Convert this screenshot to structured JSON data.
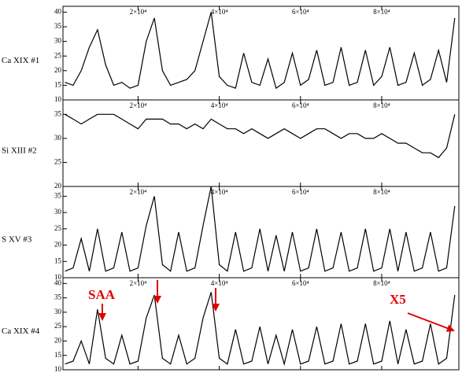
{
  "chart_data": [
    {
      "type": "line",
      "label": "Ca XIX #1",
      "color": "#000000",
      "x": [
        2000,
        4000,
        6000,
        8000,
        10000,
        12000,
        14000,
        16000,
        18000,
        20000,
        22000,
        24000,
        26000,
        28000,
        30000,
        32000,
        34000,
        36000,
        38000,
        40000,
        42000,
        44000,
        46000,
        48000,
        50000,
        52000,
        54000,
        56000,
        58000,
        60000,
        62000,
        64000,
        66000,
        68000,
        70000,
        72000,
        74000,
        76000,
        78000,
        80000,
        82000,
        84000,
        86000,
        88000,
        90000,
        92000,
        94000,
        96000,
        98000
      ],
      "values": [
        16,
        15,
        20,
        28,
        34,
        22,
        15,
        16,
        14,
        15,
        30,
        38,
        20,
        15,
        16,
        17,
        20,
        30,
        40,
        18,
        15,
        14,
        26,
        16,
        15,
        24,
        14,
        16,
        26,
        15,
        17,
        27,
        15,
        16,
        28,
        15,
        16,
        27,
        15,
        18,
        28,
        15,
        16,
        26,
        15,
        17,
        27,
        16,
        38
      ],
      "xlim": [
        1500,
        99000
      ],
      "ylim": [
        10,
        42
      ],
      "yticks": [
        10,
        15,
        20,
        25,
        30,
        35,
        40
      ],
      "xticks": [
        {
          "value": 20000,
          "label": "2×10⁴"
        },
        {
          "value": 40000,
          "label": "4×10⁴"
        },
        {
          "value": 60000,
          "label": "6×10⁴"
        },
        {
          "value": 80000,
          "label": "8×10⁴"
        }
      ]
    },
    {
      "type": "line",
      "label": "Si XIII #2",
      "color": "#000000",
      "x": [
        2000,
        4000,
        6000,
        8000,
        10000,
        12000,
        14000,
        16000,
        18000,
        20000,
        22000,
        24000,
        26000,
        28000,
        30000,
        32000,
        34000,
        36000,
        38000,
        40000,
        42000,
        44000,
        46000,
        48000,
        50000,
        52000,
        54000,
        56000,
        58000,
        60000,
        62000,
        64000,
        66000,
        68000,
        70000,
        72000,
        74000,
        76000,
        78000,
        80000,
        82000,
        84000,
        86000,
        88000,
        90000,
        92000,
        94000,
        96000,
        98000
      ],
      "values": [
        35,
        34,
        33,
        34,
        35,
        35,
        35,
        34,
        33,
        32,
        34,
        34,
        34,
        33,
        33,
        32,
        33,
        32,
        34,
        33,
        32,
        32,
        31,
        32,
        31,
        30,
        31,
        32,
        31,
        30,
        31,
        32,
        32,
        31,
        30,
        31,
        31,
        30,
        30,
        31,
        30,
        29,
        29,
        28,
        27,
        27,
        26,
        28,
        35
      ],
      "xlim": [
        1500,
        99000
      ],
      "ylim": [
        20,
        38
      ],
      "yticks": [
        20,
        25,
        30,
        35
      ],
      "xticks": [
        {
          "value": 20000,
          "label": "2×10⁴"
        },
        {
          "value": 40000,
          "label": "4×10⁴"
        },
        {
          "value": 60000,
          "label": "6×10⁴"
        },
        {
          "value": 80000,
          "label": "8×10⁴"
        }
      ]
    },
    {
      "type": "line",
      "label": "S XV #3",
      "color": "#000000",
      "x": [
        2000,
        4000,
        6000,
        8000,
        10000,
        12000,
        14000,
        16000,
        18000,
        20000,
        22000,
        24000,
        26000,
        28000,
        30000,
        32000,
        34000,
        36000,
        38000,
        40000,
        42000,
        44000,
        46000,
        48000,
        50000,
        52000,
        54000,
        56000,
        58000,
        60000,
        62000,
        64000,
        66000,
        68000,
        70000,
        72000,
        74000,
        76000,
        78000,
        80000,
        82000,
        84000,
        86000,
        88000,
        90000,
        92000,
        94000,
        96000,
        98000
      ],
      "values": [
        12,
        13,
        22,
        12,
        25,
        12,
        13,
        24,
        12,
        13,
        26,
        35,
        14,
        12,
        24,
        12,
        13,
        26,
        38,
        14,
        12,
        24,
        12,
        13,
        25,
        12,
        23,
        12,
        24,
        12,
        13,
        25,
        12,
        13,
        24,
        12,
        13,
        25,
        12,
        13,
        25,
        12,
        24,
        12,
        13,
        24,
        12,
        13,
        32
      ],
      "xlim": [
        1500,
        99000
      ],
      "ylim": [
        10,
        38
      ],
      "yticks": [
        10,
        15,
        20,
        25,
        30,
        35
      ],
      "xticks": [
        {
          "value": 20000,
          "label": "2×10⁴"
        },
        {
          "value": 40000,
          "label": "4×10⁴"
        },
        {
          "value": 60000,
          "label": "6×10⁴"
        },
        {
          "value": 80000,
          "label": "8×10⁴"
        }
      ]
    },
    {
      "type": "line",
      "label": "Ca XIX #4",
      "color": "#000000",
      "x": [
        2000,
        4000,
        6000,
        8000,
        10000,
        12000,
        14000,
        16000,
        18000,
        20000,
        22000,
        24000,
        26000,
        28000,
        30000,
        32000,
        34000,
        36000,
        38000,
        40000,
        42000,
        44000,
        46000,
        48000,
        50000,
        52000,
        54000,
        56000,
        58000,
        60000,
        62000,
        64000,
        66000,
        68000,
        70000,
        72000,
        74000,
        76000,
        78000,
        80000,
        82000,
        84000,
        86000,
        88000,
        90000,
        92000,
        94000,
        96000,
        98000
      ],
      "values": [
        12,
        13,
        20,
        12,
        31,
        14,
        12,
        22,
        12,
        13,
        28,
        36,
        14,
        12,
        22,
        12,
        14,
        28,
        37,
        14,
        12,
        24,
        12,
        13,
        25,
        12,
        22,
        12,
        24,
        12,
        13,
        25,
        12,
        13,
        26,
        12,
        13,
        26,
        12,
        13,
        27,
        12,
        24,
        12,
        13,
        26,
        12,
        14,
        36
      ],
      "xlim": [
        1500,
        99000
      ],
      "ylim": [
        10,
        42
      ],
      "yticks": [
        10,
        15,
        20,
        25,
        30,
        35,
        40
      ],
      "xticks": [
        {
          "value": 20000,
          "label": "2×10⁴"
        },
        {
          "value": 40000,
          "label": "4×10⁴"
        },
        {
          "value": 60000,
          "label": "6×10⁴"
        },
        {
          "value": 80000,
          "label": "8×10⁴"
        }
      ],
      "annotations": [
        "SAA",
        "X5"
      ]
    }
  ]
}
